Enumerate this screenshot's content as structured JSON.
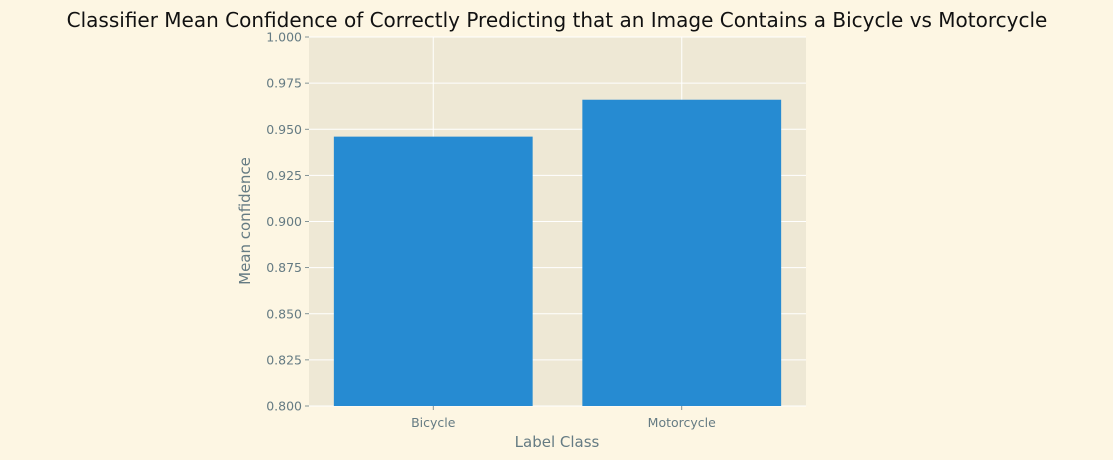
{
  "chart_data": {
    "type": "bar",
    "title": "Classifier Mean Confidence of Correctly Predicting that an Image Contains a Bicycle vs Motorcycle",
    "xlabel": "Label Class",
    "ylabel": "Mean confidence",
    "categories": [
      "Bicycle",
      "Motorcycle"
    ],
    "values": [
      0.946,
      0.966
    ],
    "ylim": [
      0.8,
      1.0
    ],
    "yticks": [
      0.8,
      0.825,
      0.85,
      0.875,
      0.9,
      0.925,
      0.95,
      0.975,
      1.0
    ],
    "ytick_labels": [
      "0.800",
      "0.825",
      "0.850",
      "0.875",
      "0.900",
      "0.925",
      "0.950",
      "0.975",
      "1.000"
    ],
    "grid": true,
    "colors": {
      "bar": "#268bd2",
      "plot_background": "#eee8d5",
      "figure_background": "#fdf6e3",
      "grid": "#ffffff",
      "text": "#657b83"
    }
  }
}
